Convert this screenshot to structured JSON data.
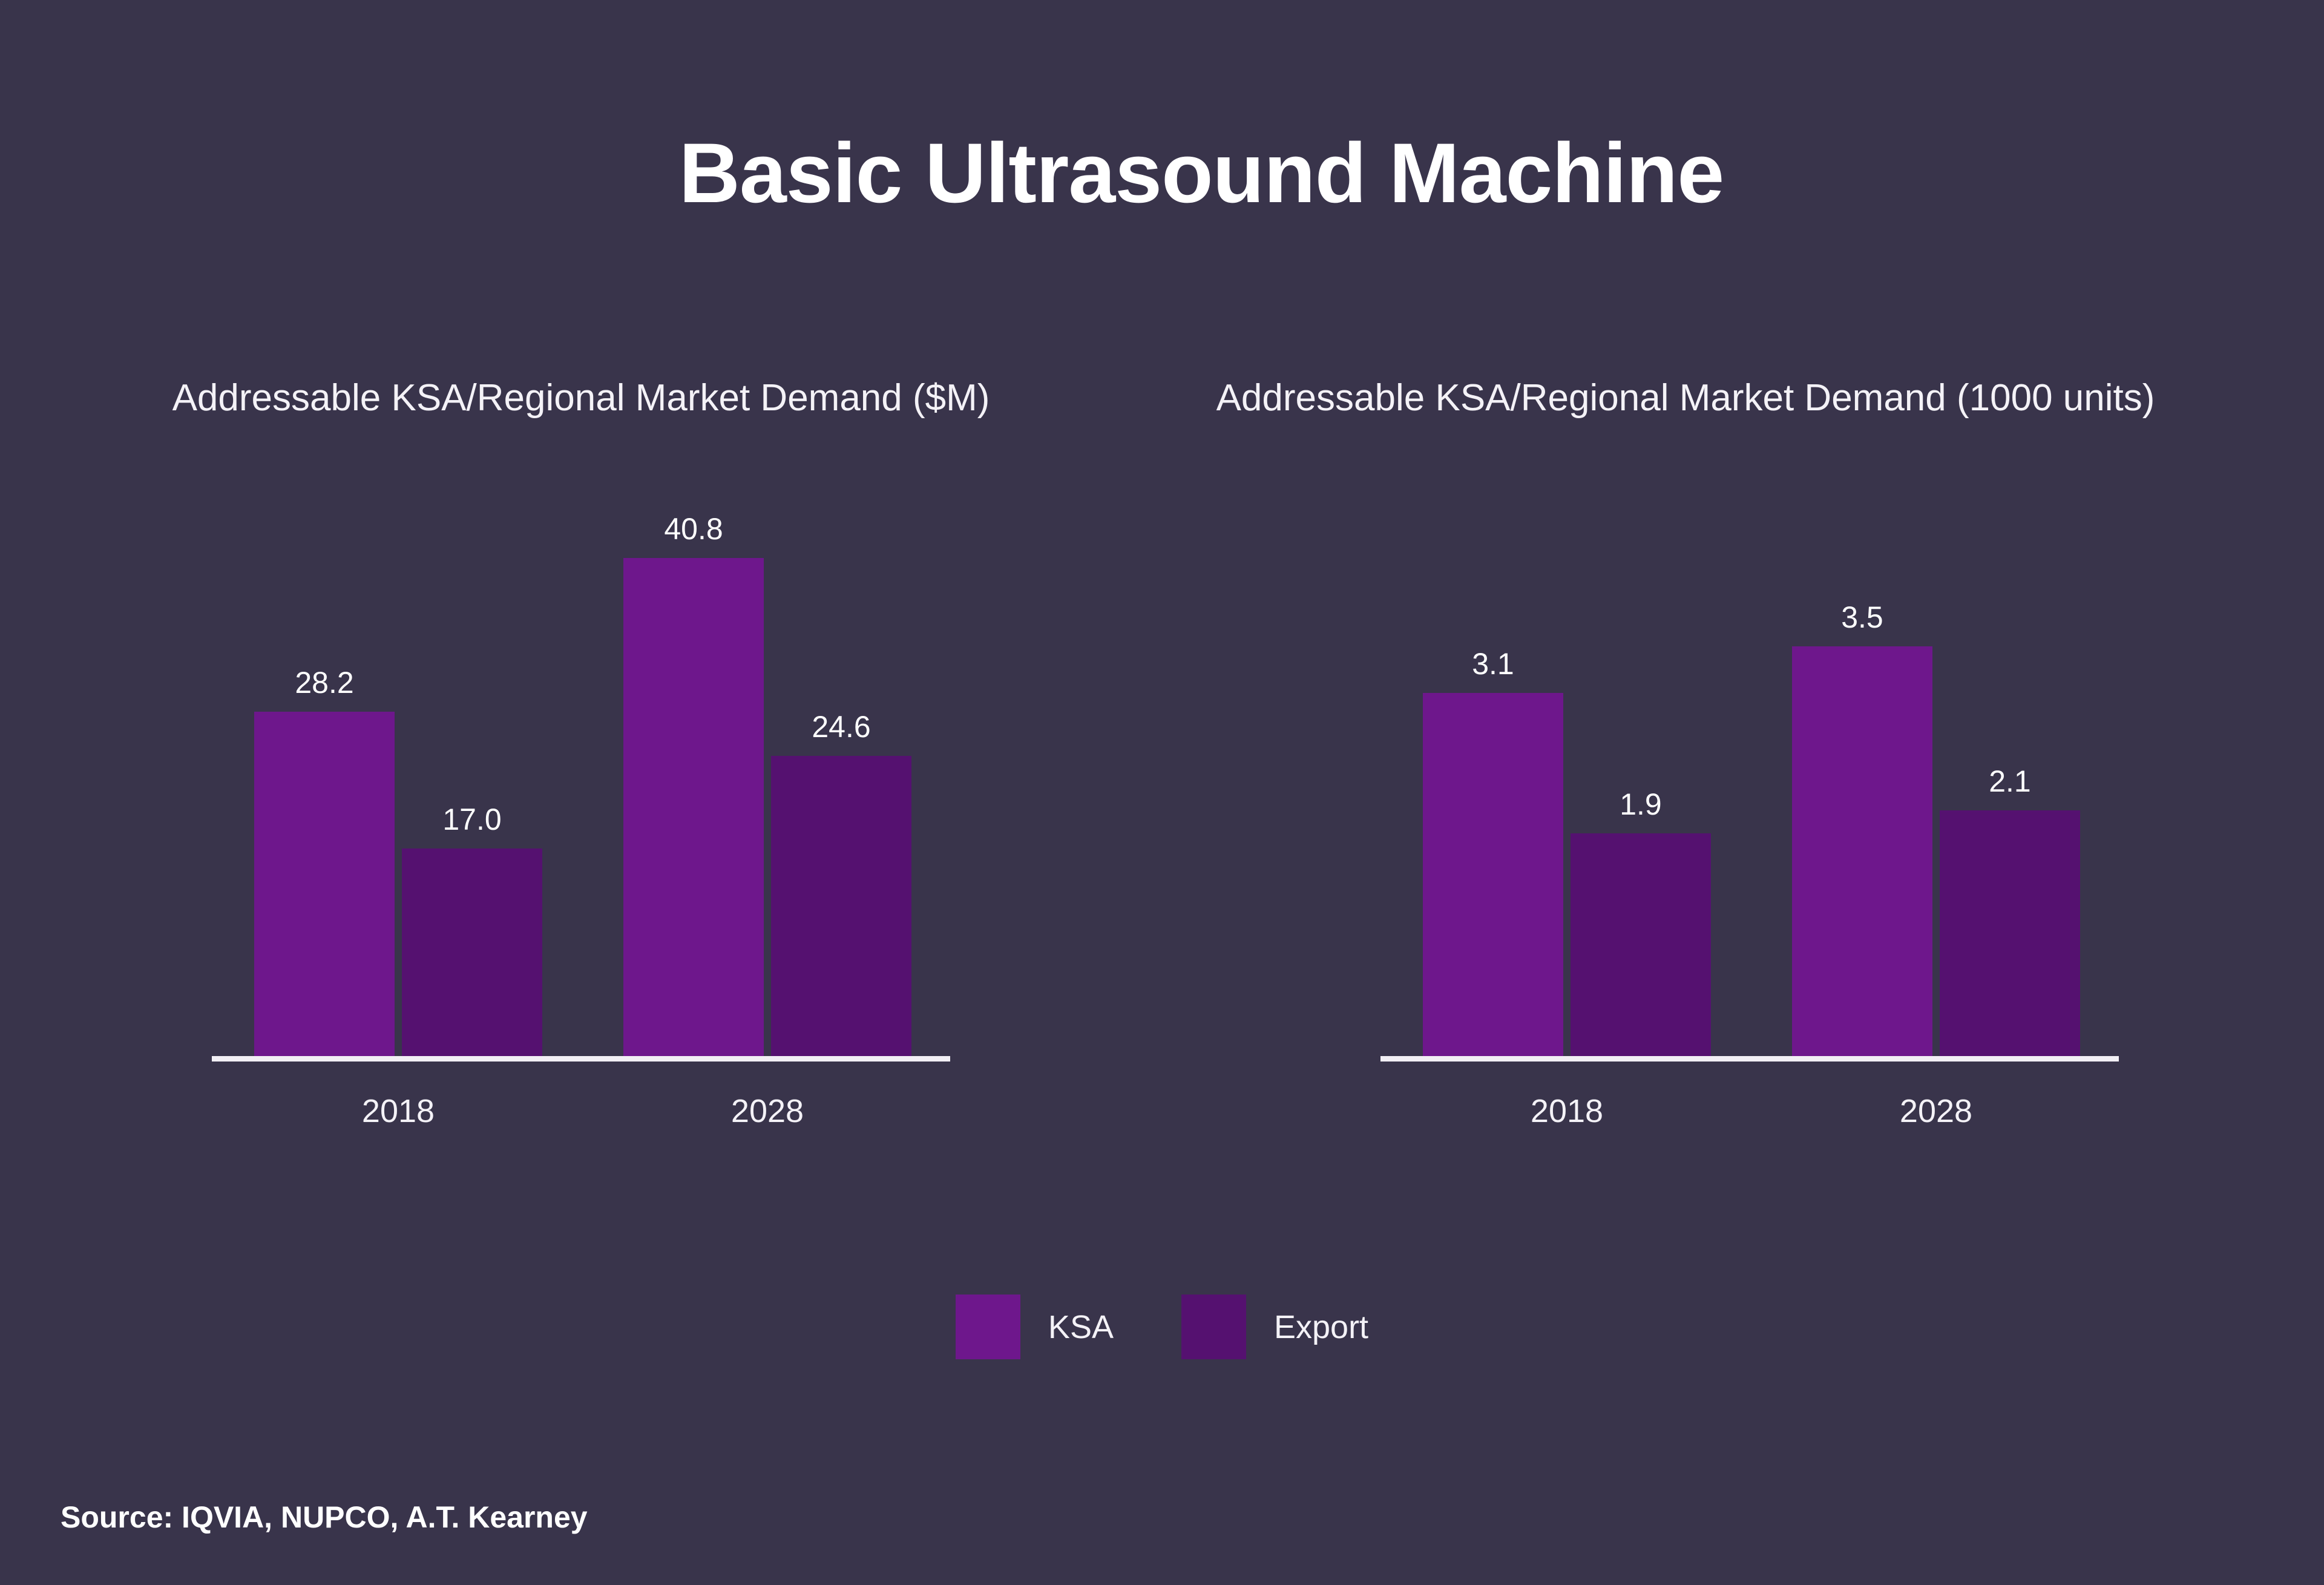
{
  "page": {
    "title": "Basic Ultrasound Machine",
    "source": "Source: IQVIA, NUPCO, A.T. Kearney"
  },
  "colors": {
    "background": "#39344B",
    "ksa": "#6E178C",
    "export": "#551170",
    "axis_line": "#F2EFF5",
    "text": "#FFFFFF"
  },
  "legend": {
    "items": [
      {
        "label": "KSA",
        "color": "#6E178C"
      },
      {
        "label": "Export",
        "color": "#551170"
      }
    ],
    "position": "bottom-center"
  },
  "chart_data": [
    {
      "type": "bar",
      "title": "Addressable KSA/Regional Market Demand ($M)",
      "categories": [
        "2018",
        "2028"
      ],
      "series": [
        {
          "name": "KSA",
          "values": [
            28.2,
            40.8
          ],
          "labels": [
            "28.2",
            "40.8"
          ],
          "color": "#6E178C"
        },
        {
          "name": "Export",
          "values": [
            17.0,
            24.6
          ],
          "labels": [
            "17.0",
            "24.6"
          ],
          "color": "#551170"
        }
      ],
      "xlabel": "",
      "ylabel": "",
      "grid": false,
      "value_labels_shown": true
    },
    {
      "type": "bar",
      "title": "Addressable KSA/Regional Market Demand (1000 units)",
      "categories": [
        "2018",
        "2028"
      ],
      "series": [
        {
          "name": "KSA",
          "values": [
            3.1,
            3.5
          ],
          "labels": [
            "3.1",
            "3.5"
          ],
          "color": "#6E178C"
        },
        {
          "name": "Export",
          "values": [
            1.9,
            2.1
          ],
          "labels": [
            "1.9",
            "2.1"
          ],
          "color": "#551170"
        }
      ],
      "xlabel": "",
      "ylabel": "",
      "grid": false,
      "value_labels_shown": true
    }
  ]
}
